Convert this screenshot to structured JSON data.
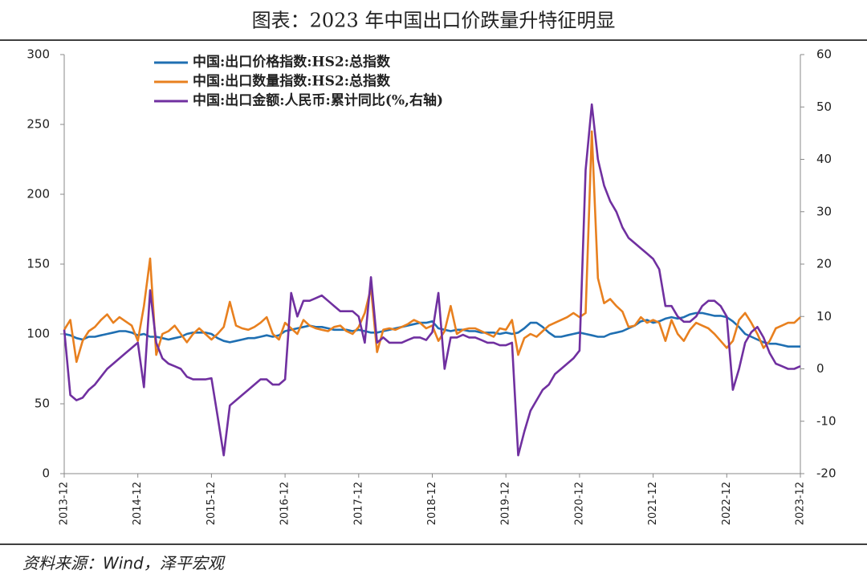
{
  "chart_data": {
    "type": "line",
    "title": "图表：2023 年中国出口价跌量升特征明显",
    "source": "资料来源：Wind，泽平宏观",
    "categories": [
      "2013-12",
      null,
      null,
      null,
      null,
      null,
      null,
      null,
      null,
      null,
      null,
      null,
      "2014-12",
      null,
      null,
      null,
      null,
      null,
      null,
      null,
      null,
      null,
      null,
      null,
      "2015-12",
      null,
      null,
      null,
      null,
      null,
      null,
      null,
      null,
      null,
      null,
      null,
      "2016-12",
      null,
      null,
      null,
      null,
      null,
      null,
      null,
      null,
      null,
      null,
      null,
      "2017-12",
      null,
      null,
      null,
      null,
      null,
      null,
      null,
      null,
      null,
      null,
      null,
      "2018-12",
      null,
      null,
      null,
      null,
      null,
      null,
      null,
      null,
      null,
      null,
      null,
      "2019-12",
      null,
      null,
      null,
      null,
      null,
      null,
      null,
      null,
      null,
      null,
      null,
      "2020-12",
      null,
      null,
      null,
      null,
      null,
      null,
      null,
      null,
      null,
      null,
      null,
      "2021-12",
      null,
      null,
      null,
      null,
      null,
      null,
      null,
      null,
      null,
      null,
      null,
      "2022-12",
      null,
      null,
      null,
      null,
      null,
      null,
      null,
      null,
      null,
      null,
      null,
      "2023-12"
    ],
    "series": [
      {
        "name": "中国:出口价格指数:HS2:总指数",
        "color": "#1f6fb2",
        "values": [
          100,
          99,
          97,
          96,
          98,
          98,
          99,
          100,
          101,
          102,
          102,
          101,
          99,
          100,
          98,
          98,
          97,
          96,
          97,
          98,
          100,
          101,
          101,
          101,
          100,
          97,
          95,
          94,
          95,
          96,
          97,
          97,
          98,
          99,
          98,
          99,
          102,
          103,
          104,
          105,
          106,
          105,
          105,
          104,
          103,
          103,
          103,
          102,
          103,
          102,
          101,
          101,
          102,
          103,
          104,
          105,
          106,
          107,
          108,
          108,
          109,
          104,
          103,
          102,
          103,
          103,
          102,
          102,
          101,
          101,
          101,
          100,
          101,
          100,
          101,
          104,
          108,
          108,
          105,
          101,
          98,
          98,
          99,
          100,
          101,
          100,
          99,
          98,
          98,
          100,
          101,
          102,
          104,
          106,
          109,
          110,
          108,
          109,
          111,
          112,
          111,
          112,
          114,
          115,
          115,
          114,
          113,
          113,
          112,
          109,
          105,
          100,
          98,
          96,
          94,
          93,
          93,
          92,
          91,
          91,
          91
        ]
      },
      {
        "name": "中国:出口数量指数:HS2:总指数",
        "color": "#e8801f",
        "values": [
          103,
          110,
          80,
          95,
          102,
          105,
          110,
          114,
          108,
          112,
          109,
          106,
          95,
          120,
          154,
          85,
          100,
          102,
          106,
          100,
          94,
          100,
          104,
          100,
          96,
          100,
          105,
          123,
          106,
          104,
          103,
          105,
          108,
          112,
          100,
          96,
          108,
          104,
          100,
          110,
          106,
          104,
          103,
          102,
          105,
          106,
          102,
          100,
          105,
          115,
          133,
          87,
          103,
          104,
          103,
          105,
          107,
          110,
          108,
          104,
          106,
          95,
          102,
          120,
          100,
          103,
          104,
          104,
          102,
          100,
          98,
          104,
          103,
          110,
          85,
          97,
          100,
          98,
          102,
          106,
          108,
          110,
          112,
          115,
          112,
          115,
          245,
          140,
          122,
          125,
          120,
          116,
          105,
          106,
          112,
          108,
          110,
          108,
          95,
          110,
          100,
          95,
          103,
          108,
          106,
          104,
          100,
          95,
          90,
          95,
          110,
          115,
          108,
          100,
          90,
          95,
          104,
          106,
          108,
          108,
          112
        ]
      },
      {
        "name": "中国:出口金额:人民币:累计同比(%,右轴)",
        "color": "#7030a0",
        "axis": "y2",
        "values": [
          7.5,
          -5,
          -6,
          -5.5,
          -4,
          -3,
          -1.5,
          0,
          1,
          2,
          3,
          4,
          5,
          -3.5,
          15,
          5,
          2,
          1,
          0.5,
          0,
          -1.5,
          -2,
          -2,
          -2,
          -1.8,
          -9,
          -16.5,
          -7,
          -6,
          -5,
          -4,
          -3,
          -2,
          -2,
          -3,
          -3,
          -2,
          14.5,
          10,
          13,
          13,
          13.5,
          14,
          13,
          12,
          11,
          11,
          11,
          10,
          5,
          17.5,
          5,
          6,
          5,
          5,
          5,
          5.5,
          6,
          6,
          5.5,
          7,
          14.5,
          0,
          6,
          6,
          6.5,
          6,
          6,
          5.5,
          5,
          5,
          4.5,
          4.5,
          5,
          -16.5,
          -12,
          -8,
          -6,
          -4,
          -3,
          -1,
          0,
          1,
          2,
          3.5,
          38,
          50.5,
          40,
          35,
          32,
          30,
          27,
          25,
          24,
          23,
          22,
          21,
          19,
          12,
          12,
          10,
          9,
          9,
          10,
          12,
          13,
          13,
          12,
          10,
          -4,
          0,
          5,
          7,
          8,
          6,
          3,
          1,
          0.5,
          0,
          0,
          0.5
        ]
      }
    ],
    "ylim": [
      0,
      300
    ],
    "yticks": [
      0,
      50,
      100,
      150,
      200,
      250,
      300
    ],
    "y2lim": [
      -20,
      60
    ],
    "y2ticks": [
      -20,
      -10,
      0,
      10,
      20,
      30,
      40,
      50,
      60
    ],
    "legend": "top-left",
    "grid": false
  }
}
